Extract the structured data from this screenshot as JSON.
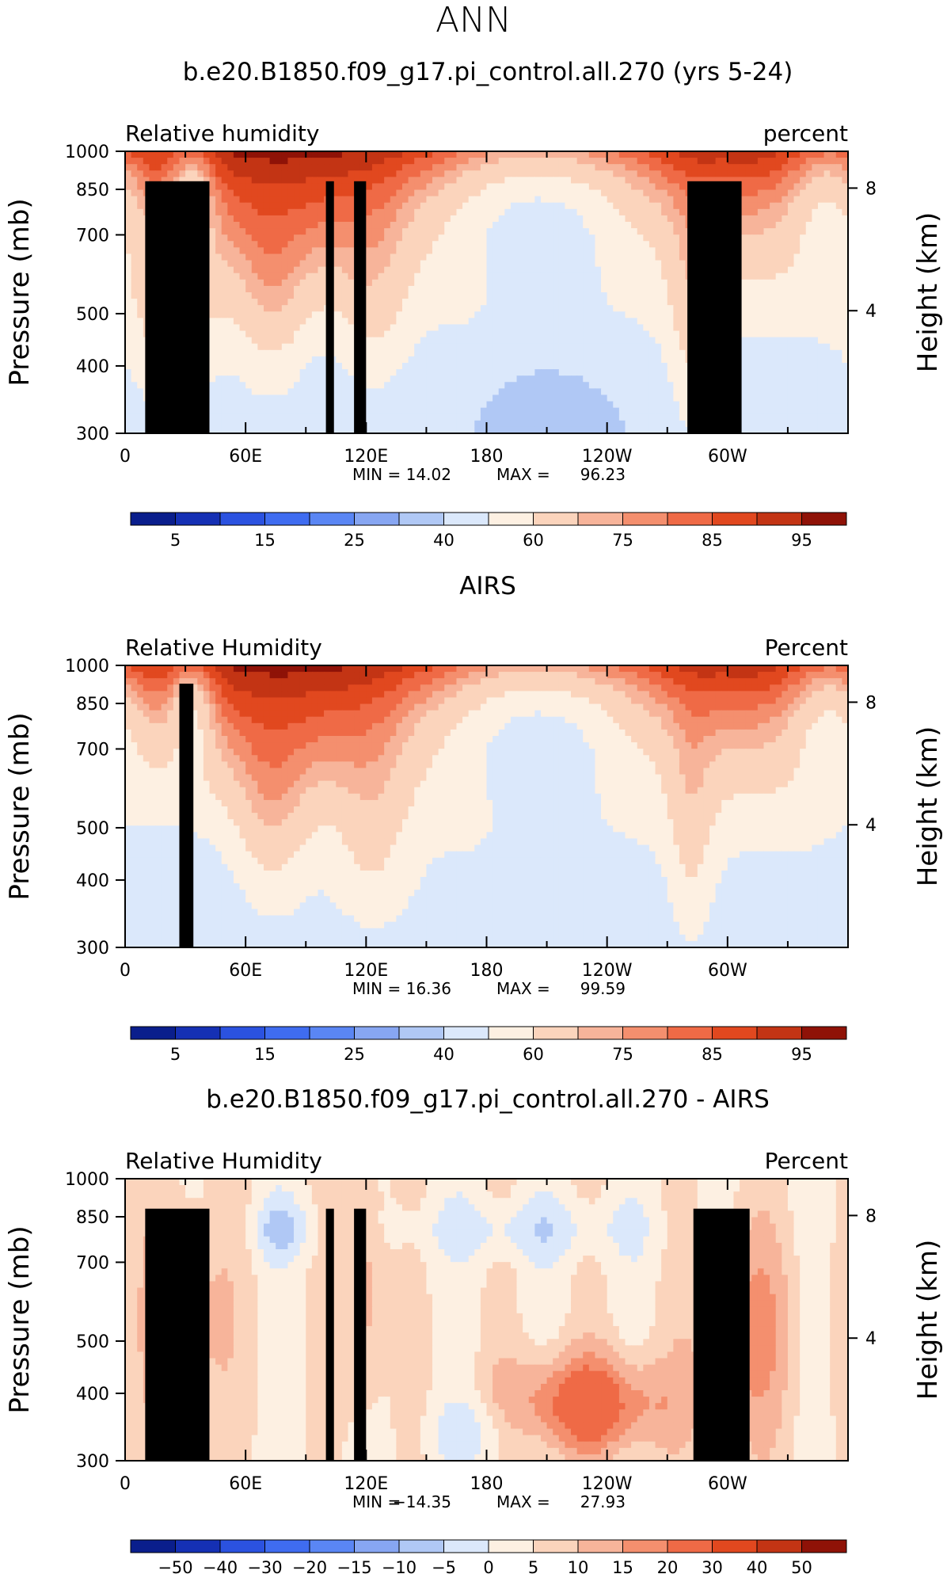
{
  "figure": {
    "suptitle": "ANN",
    "colors": {
      "full_palette": [
        "#0a1e8c",
        "#1530b4",
        "#2b52e0",
        "#3f6cf0",
        "#5a86f4",
        "#87a6f2",
        "#b0c8f5",
        "#dbe8fb",
        "#fdf0e2",
        "#fbd4bc",
        "#f7b49a",
        "#f48f6e",
        "#ef6a46",
        "#e1481f",
        "#c33414",
        "#8f1207"
      ],
      "land_mask": "#000000"
    }
  },
  "chart_data": [
    {
      "type": "contour",
      "title": "b.e20.B1850.f09_g17.pi_control.all.270 (yrs 5-24)",
      "left_label": "Relative humidity",
      "right_label": "percent",
      "ylabel": "Pressure (mb)",
      "ylabel_right": "Height (km)",
      "x_ticks": [
        "0",
        "60E",
        "120E",
        "180",
        "120W",
        "60W"
      ],
      "y_ticks": [
        "300",
        "400",
        "500",
        "700",
        "850",
        "1000"
      ],
      "y_right_ticks": [
        "8",
        "4"
      ],
      "stats": {
        "min_label": "MIN =",
        "min": "14.02",
        "max_label": "MAX =",
        "max": "96.23"
      },
      "colorbar_labels": [
        "5",
        "15",
        "25",
        "40",
        "60",
        "75",
        "85",
        "95"
      ],
      "xlim": [
        0,
        360
      ],
      "ylim_mb": [
        1000,
        300
      ],
      "ylim_km_right": [
        0,
        9.2
      ],
      "terrain": [
        [
          10,
          42,
          880
        ],
        [
          28,
          35,
          840
        ],
        [
          100,
          104,
          880
        ],
        [
          114,
          120,
          880
        ],
        [
          280,
          307,
          880
        ]
      ]
    },
    {
      "type": "contour",
      "title": "AIRS",
      "left_label": "Relative Humidity",
      "right_label": "Percent",
      "ylabel": "Pressure (mb)",
      "ylabel_right": "Height (km)",
      "x_ticks": [
        "0",
        "60E",
        "120E",
        "180",
        "120W",
        "60W"
      ],
      "y_ticks": [
        "300",
        "400",
        "500",
        "700",
        "850",
        "1000"
      ],
      "y_right_ticks": [
        "8",
        "4"
      ],
      "stats": {
        "min_label": "MIN =",
        "min": "16.36",
        "max_label": "MAX =",
        "max": "99.59"
      },
      "colorbar_labels": [
        "5",
        "15",
        "25",
        "40",
        "60",
        "75",
        "85",
        "95"
      ],
      "xlim": [
        0,
        360
      ],
      "ylim_mb": [
        1000,
        300
      ],
      "ylim_km_right": [
        0,
        9.2
      ],
      "terrain": [
        [
          27,
          34,
          925
        ]
      ]
    },
    {
      "type": "contour",
      "title": "b.e20.B1850.f09_g17.pi_control.all.270 - AIRS",
      "left_label": "Relative Humidity",
      "right_label": "Percent",
      "ylabel": "Pressure (mb)",
      "ylabel_right": "Height (km)",
      "x_ticks": [
        "0",
        "60E",
        "120E",
        "180",
        "120W",
        "60W"
      ],
      "y_ticks": [
        "300",
        "400",
        "500",
        "700",
        "850",
        "1000"
      ],
      "y_right_ticks": [
        "8",
        "4"
      ],
      "stats": {
        "min_label": "MIN =",
        "min": "−14.35",
        "max_label": "MAX =",
        "max": "27.93"
      },
      "colorbar_labels": [
        "−50",
        "−40",
        "−30",
        "−20",
        "−15",
        "−10",
        "−5",
        "0",
        "5",
        "10",
        "15",
        "20",
        "30",
        "40",
        "50"
      ],
      "xlim": [
        0,
        360
      ],
      "ylim_mb": [
        1000,
        300
      ],
      "ylim_km_right": [
        0,
        9.2
      ],
      "terrain": [
        [
          10,
          42,
          880
        ],
        [
          28,
          35,
          840
        ],
        [
          100,
          104,
          880
        ],
        [
          114,
          120,
          880
        ],
        [
          283,
          311,
          880
        ]
      ]
    }
  ]
}
